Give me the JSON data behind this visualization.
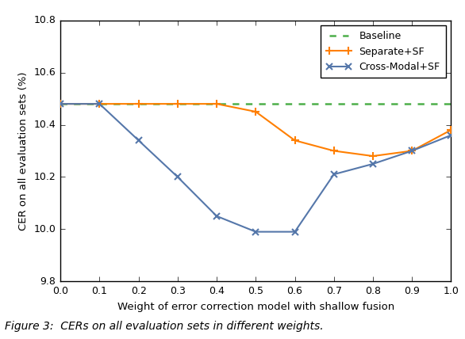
{
  "baseline_y": 10.48,
  "separate_sf_x": [
    0.0,
    0.1,
    0.2,
    0.3,
    0.4,
    0.5,
    0.6,
    0.7,
    0.8,
    0.9,
    1.0
  ],
  "separate_sf_y": [
    10.48,
    10.48,
    10.48,
    10.48,
    10.48,
    10.45,
    10.34,
    10.3,
    10.28,
    10.3,
    10.38
  ],
  "cross_modal_sf_x": [
    0.0,
    0.1,
    0.2,
    0.3,
    0.4,
    0.5,
    0.6,
    0.7,
    0.8,
    0.9,
    1.0
  ],
  "cross_modal_sf_y": [
    10.48,
    10.48,
    10.34,
    10.2,
    10.05,
    9.99,
    9.99,
    10.21,
    10.25,
    10.3,
    10.36
  ],
  "xlim": [
    0.0,
    1.0
  ],
  "ylim": [
    9.8,
    10.8
  ],
  "xlabel": "Weight of error correction model with shallow fusion",
  "ylabel": "CER on all evaluation sets (%)",
  "baseline_color": "#4daf4a",
  "separate_sf_color": "#ff7f00",
  "cross_modal_sf_color": "#5577aa",
  "baseline_label": "Baseline",
  "separate_sf_label": "Separate+SF",
  "cross_modal_sf_label": "Cross-Modal+SF",
  "xticks": [
    0.0,
    0.1,
    0.2,
    0.3,
    0.4,
    0.5,
    0.6,
    0.7,
    0.8,
    0.9,
    1.0
  ],
  "yticks": [
    9.8,
    10.0,
    10.2,
    10.4,
    10.6,
    10.8
  ],
  "caption": "Figure 3:  CERs on all evaluation sets in different weights.",
  "figsize": [
    5.86,
    4.28
  ],
  "dpi": 100
}
